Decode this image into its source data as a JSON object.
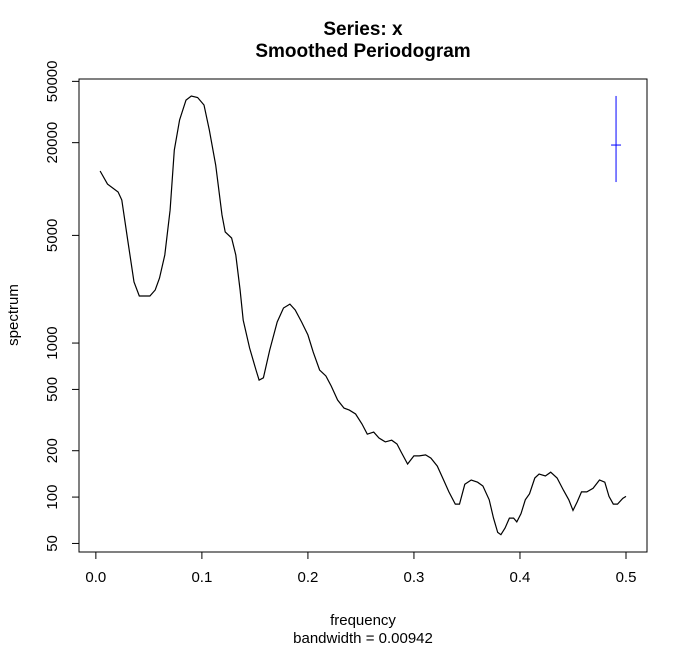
{
  "chart_data": {
    "type": "line",
    "title": "Series: x",
    "subtitle": "Smoothed Periodogram",
    "x_label": "frequency",
    "x_sublabel": "bandwidth = 0.00942",
    "y_label": "spectrum",
    "log_y": true,
    "color": "#000000",
    "x": [
      0.004,
      0.011,
      0.021,
      0.0245,
      0.03,
      0.036,
      0.041,
      0.051,
      0.056,
      0.06,
      0.065,
      0.07,
      0.074,
      0.079,
      0.085,
      0.09,
      0.096,
      0.102,
      0.107,
      0.113,
      0.119,
      0.122,
      0.128,
      0.132,
      0.136,
      0.139,
      0.145,
      0.151,
      0.154,
      0.158,
      0.164,
      0.171,
      0.177,
      0.183,
      0.188,
      0.194,
      0.2,
      0.205,
      0.211,
      0.217,
      0.222,
      0.228,
      0.234,
      0.239,
      0.245,
      0.251,
      0.256,
      0.262,
      0.267,
      0.273,
      0.279,
      0.284,
      0.288,
      0.294,
      0.3,
      0.305,
      0.311,
      0.316,
      0.322,
      0.328,
      0.333,
      0.339,
      0.343,
      0.348,
      0.354,
      0.36,
      0.365,
      0.371,
      0.375,
      0.379,
      0.382,
      0.386,
      0.39,
      0.394,
      0.397,
      0.401,
      0.405,
      0.409,
      0.414,
      0.418,
      0.424,
      0.429,
      0.435,
      0.441,
      0.446,
      0.45,
      0.454,
      0.458,
      0.463,
      0.469,
      0.475,
      0.48,
      0.484,
      0.488,
      0.492,
      0.497,
      0.5
    ],
    "values": [
      13100,
      10770,
      9560,
      8490,
      4670,
      2490,
      2020,
      2020,
      2210,
      2640,
      3730,
      7300,
      17900,
      28100,
      37800,
      40200,
      39300,
      35100,
      24200,
      14300,
      6780,
      5260,
      4810,
      3730,
      2210,
      1410,
      929,
      668,
      575,
      595,
      900,
      1370,
      1690,
      1790,
      1640,
      1370,
      1130,
      874,
      668,
      611,
      526,
      427,
      378,
      367,
      346,
      298,
      256,
      264,
      242,
      228,
      234,
      221,
      196,
      164,
      185,
      185,
      188,
      179,
      159,
      129,
      108,
      90,
      90,
      121,
      129,
      125,
      118,
      96,
      73,
      59,
      57,
      63,
      73,
      73,
      69,
      78,
      96,
      105,
      133,
      141,
      137,
      145,
      133,
      111,
      96,
      82,
      93,
      108,
      108,
      114,
      129,
      125,
      101,
      90,
      90,
      98,
      101
    ],
    "ci": {
      "color": "#0000ff",
      "x": 0.4906,
      "y": 19300,
      "lower": 11100,
      "upper": 40200,
      "xmin": 0.4859,
      "xmax": 0.4953
    },
    "xlim": [
      -0.0159,
      0.5198
    ],
    "ylim": [
      44,
      51800
    ],
    "xticks": [
      {
        "value": 0,
        "label": "0.0"
      },
      0.1,
      0.2,
      0.3,
      0.4,
      0.5
    ],
    "yticks": [
      50,
      100,
      200,
      500,
      1000,
      5000,
      20000,
      50000
    ]
  }
}
